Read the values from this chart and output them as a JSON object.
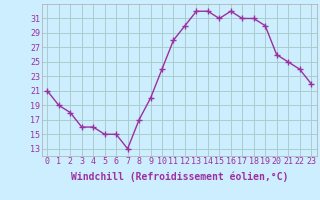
{
  "x": [
    0,
    1,
    2,
    3,
    4,
    5,
    6,
    7,
    8,
    9,
    10,
    11,
    12,
    13,
    14,
    15,
    16,
    17,
    18,
    19,
    20,
    21,
    22,
    23
  ],
  "y": [
    21,
    19,
    18,
    16,
    16,
    15,
    15,
    13,
    17,
    20,
    24,
    28,
    30,
    32,
    32,
    31,
    32,
    31,
    31,
    30,
    26,
    25,
    24,
    22
  ],
  "line_color": "#9b30a0",
  "marker": "+",
  "marker_size": 4,
  "marker_lw": 1.0,
  "bg_color": "#cceeff",
  "grid_color": "#aacccc",
  "xlabel": "Windchill (Refroidissement éolien,°C)",
  "xlabel_fontsize": 7,
  "yticks": [
    13,
    15,
    17,
    19,
    21,
    23,
    25,
    27,
    29,
    31
  ],
  "ylim": [
    12,
    33
  ],
  "xlim": [
    -0.5,
    23.5
  ],
  "tick_fontsize": 6,
  "line_width": 1.0
}
